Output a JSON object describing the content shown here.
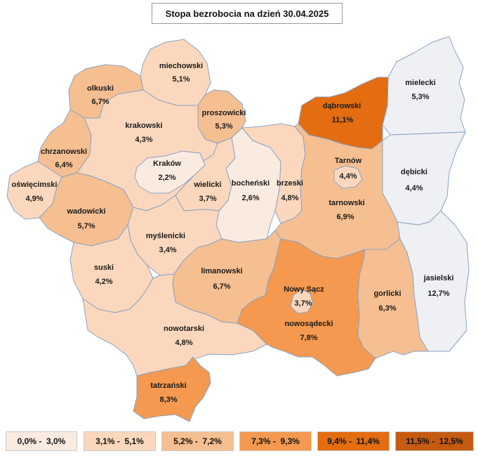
{
  "title": "Stopa bezrobocia na dzień 30.04.2025",
  "colors": {
    "c0": "#faebe1",
    "c1": "#fbd8bd",
    "c2": "#f6bf91",
    "c3": "#f4994f",
    "c4": "#e36d10",
    "c5": "#c55a11",
    "none": "#eef0f3"
  },
  "regions": [
    {
      "name": "miechowski",
      "value": "5,1%",
      "cls": "c1"
    },
    {
      "name": "olkuski",
      "value": "6,7%",
      "cls": "c2"
    },
    {
      "name": "proszowicki",
      "value": "5,3%",
      "cls": "c2"
    },
    {
      "name": "krakowski",
      "value": "4,3%",
      "cls": "c1"
    },
    {
      "name": "chrzanowski",
      "value": "6,4%",
      "cls": "c2"
    },
    {
      "name": "oświęcimski",
      "value": "4,9%",
      "cls": "c1"
    },
    {
      "name": "Kraków",
      "value": "2,2%",
      "cls": "c0"
    },
    {
      "name": "wielicki",
      "value": "3,7%",
      "cls": "c1"
    },
    {
      "name": "bocheński",
      "value": "2,6%",
      "cls": "c0"
    },
    {
      "name": "brzeski",
      "value": "4,8%",
      "cls": "c1"
    },
    {
      "name": "wadowicki",
      "value": "5,7%",
      "cls": "c2"
    },
    {
      "name": "myślenicki",
      "value": "3,4%",
      "cls": "c1"
    },
    {
      "name": "suski",
      "value": "4,2%",
      "cls": "c1"
    },
    {
      "name": "limanowski",
      "value": "6,7%",
      "cls": "c2"
    },
    {
      "name": "nowotarski",
      "value": "4,8%",
      "cls": "c1"
    },
    {
      "name": "tatrzański",
      "value": "8,3%",
      "cls": "c3"
    },
    {
      "name": "nowosądecki",
      "value": "7,8%",
      "cls": "c3"
    },
    {
      "name": "Nowy Sącz",
      "value": "3,7%",
      "cls": "c1"
    },
    {
      "name": "gorlicki",
      "value": "6,3%",
      "cls": "c2"
    },
    {
      "name": "tarnowski",
      "value": "6,9%",
      "cls": "c2"
    },
    {
      "name": "Tarnów",
      "value": "4,4%",
      "cls": "c1"
    },
    {
      "name": "dąbrowski",
      "value": "11,1%",
      "cls": "c4"
    },
    {
      "name": "mielecki",
      "value": "5,3%",
      "cls": "none"
    },
    {
      "name": "dębicki",
      "value": "4,4%",
      "cls": "none"
    },
    {
      "name": "jasielski",
      "value": "12,7%",
      "cls": "none"
    }
  ],
  "legend": [
    {
      "label": "0,0% -  3,0%",
      "cls": "c0"
    },
    {
      "label": "3,1% -  5,1%",
      "cls": "c1"
    },
    {
      "label": "5,2% -  7,2%",
      "cls": "c2"
    },
    {
      "label": "7,3% -  9,3%",
      "cls": "c3"
    },
    {
      "label": "9,4% -  11,4%",
      "cls": "c4"
    },
    {
      "label": "11,5% -  12,5%",
      "cls": "c5"
    }
  ]
}
